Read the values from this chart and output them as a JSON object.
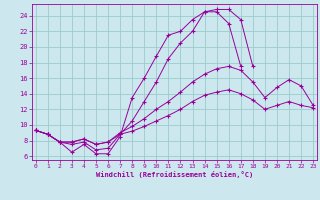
{
  "xlabel": "Windchill (Refroidissement éolien,°C)",
  "bg_color": "#cce8ee",
  "line_color": "#990099",
  "grid_color": "#99cccc",
  "x_ticks": [
    0,
    1,
    2,
    3,
    4,
    5,
    6,
    7,
    8,
    9,
    10,
    11,
    12,
    13,
    14,
    15,
    16,
    17,
    18,
    19,
    20,
    21,
    22,
    23
  ],
  "y_ticks": [
    6,
    8,
    10,
    12,
    14,
    16,
    18,
    20,
    22,
    24
  ],
  "xlim": [
    -0.3,
    23.3
  ],
  "ylim": [
    5.5,
    25.5
  ],
  "series": [
    [
      9.3,
      8.8,
      7.8,
      6.5,
      7.5,
      6.3,
      6.3,
      8.5,
      13.5,
      16.0,
      18.8,
      21.5,
      22.0,
      23.5,
      24.5,
      24.5,
      23.0,
      17.5,
      null,
      null,
      null,
      null,
      null,
      null
    ],
    [
      9.3,
      8.8,
      7.8,
      7.5,
      7.8,
      6.8,
      7.0,
      8.8,
      10.5,
      13.0,
      15.5,
      18.5,
      20.5,
      22.0,
      24.5,
      24.8,
      24.8,
      23.5,
      17.5,
      null,
      null,
      null,
      null,
      null
    ],
    [
      9.3,
      8.8,
      7.8,
      7.8,
      8.2,
      7.5,
      7.8,
      9.0,
      9.8,
      10.8,
      12.0,
      13.0,
      14.2,
      15.5,
      16.5,
      17.2,
      17.5,
      17.0,
      15.5,
      13.5,
      14.8,
      15.8,
      15.0,
      12.5
    ],
    [
      9.3,
      8.8,
      7.8,
      7.8,
      8.2,
      7.5,
      7.8,
      8.8,
      9.2,
      9.8,
      10.5,
      11.2,
      12.0,
      13.0,
      13.8,
      14.2,
      14.5,
      14.0,
      13.2,
      12.0,
      12.5,
      13.0,
      12.5,
      12.2
    ]
  ]
}
